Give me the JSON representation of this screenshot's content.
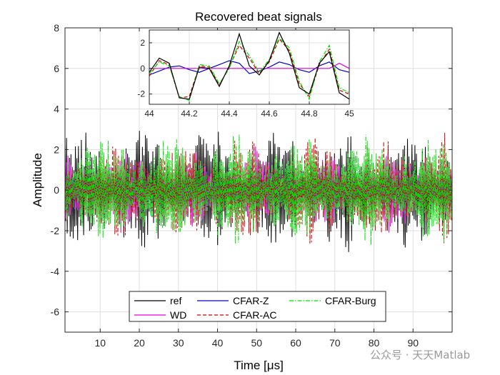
{
  "chart_data": {
    "type": "line",
    "title": "Recovered beat signals",
    "xlabel": "Time [μs]",
    "ylabel": "Amplitude",
    "xlim": [
      1,
      100
    ],
    "ylim": [
      -7,
      8
    ],
    "xticks": [
      10,
      20,
      30,
      40,
      50,
      60,
      70,
      80,
      90
    ],
    "xtick_labels": [
      "10",
      "20",
      "30",
      "40",
      "50",
      "60",
      "70",
      "80",
      "90"
    ],
    "yticks": [
      -6,
      -4,
      -2,
      0,
      2,
      4,
      6,
      8
    ],
    "ytick_labels": [
      "-6",
      "-4",
      "-2",
      "0",
      "2",
      "4",
      "6",
      "8"
    ],
    "grid": true,
    "legend_position": "bottom-center",
    "series": [
      {
        "name": "ref",
        "color": "#000000",
        "style": "solid",
        "amplitude": 2.8
      },
      {
        "name": "CFAR-Z",
        "color": "#0000cc",
        "style": "solid",
        "amplitude": 1.2
      },
      {
        "name": "CFAR-Burg",
        "color": "#00e000",
        "style": "dashdot",
        "amplitude": 2.5
      },
      {
        "name": "WD",
        "color": "#e000e0",
        "style": "solid",
        "amplitude": 1.8
      },
      {
        "name": "CFAR-AC",
        "color": "#cc0000",
        "style": "dashed",
        "amplitude": 2.4
      }
    ],
    "inset": {
      "xlim": [
        44,
        45
      ],
      "ylim": [
        -2.8,
        3.0
      ],
      "xticks": [
        44,
        44.2,
        44.4,
        44.6,
        44.8,
        45
      ],
      "xtick_labels": [
        "44",
        "44.2",
        "44.4",
        "44.6",
        "44.8",
        "45"
      ],
      "yticks": [
        -2,
        0,
        2
      ],
      "ytick_labels": [
        "-2",
        "0",
        "2"
      ],
      "x": [
        44.0,
        44.05,
        44.1,
        44.15,
        44.2,
        44.25,
        44.3,
        44.35,
        44.4,
        44.45,
        44.5,
        44.55,
        44.6,
        44.65,
        44.7,
        44.75,
        44.8,
        44.85,
        44.9,
        44.95,
        45.0
      ],
      "series": [
        {
          "name": "ref",
          "values": [
            -0.3,
            0.8,
            0.4,
            -2.3,
            -2.4,
            0.1,
            0.0,
            -1.4,
            0.2,
            2.7,
            0.2,
            -0.5,
            0.6,
            2.8,
            1.2,
            -1.5,
            -2.0,
            0.4,
            1.3,
            -1.9,
            -2.4
          ]
        },
        {
          "name": "CFAR-Z",
          "values": [
            -0.5,
            -0.2,
            0.1,
            0.2,
            -0.1,
            -0.3,
            0.0,
            0.3,
            0.6,
            0.4,
            -0.4,
            -0.2,
            0.1,
            0.5,
            0.3,
            -0.1,
            -0.3,
            0.2,
            0.5,
            -0.1,
            -0.3
          ]
        },
        {
          "name": "CFAR-Burg",
          "values": [
            -0.4,
            0.5,
            0.2,
            -2.2,
            -2.5,
            0.3,
            0.2,
            -1.2,
            0.0,
            2.1,
            1.0,
            -0.3,
            0.7,
            2.4,
            1.6,
            -1.0,
            -2.4,
            0.5,
            1.8,
            -1.5,
            -1.9
          ]
        },
        {
          "name": "WD",
          "values": [
            0.0,
            0.0,
            0.0,
            0.0,
            0.0,
            0.0,
            0.0,
            0.0,
            0.0,
            0.0,
            0.0,
            0.0,
            0.0,
            0.0,
            0.0,
            0.0,
            0.0,
            0.0,
            0.0,
            0.4,
            0.0
          ]
        },
        {
          "name": "CFAR-AC",
          "values": [
            -0.6,
            0.6,
            0.3,
            -2.3,
            -2.2,
            0.2,
            0.1,
            -1.3,
            0.1,
            1.8,
            0.8,
            -0.4,
            0.5,
            2.3,
            1.4,
            -1.2,
            -2.2,
            0.3,
            1.5,
            -1.7,
            -2.0
          ]
        }
      ]
    }
  },
  "watermark": {
    "text": "公众号 · 天天Matlab"
  }
}
